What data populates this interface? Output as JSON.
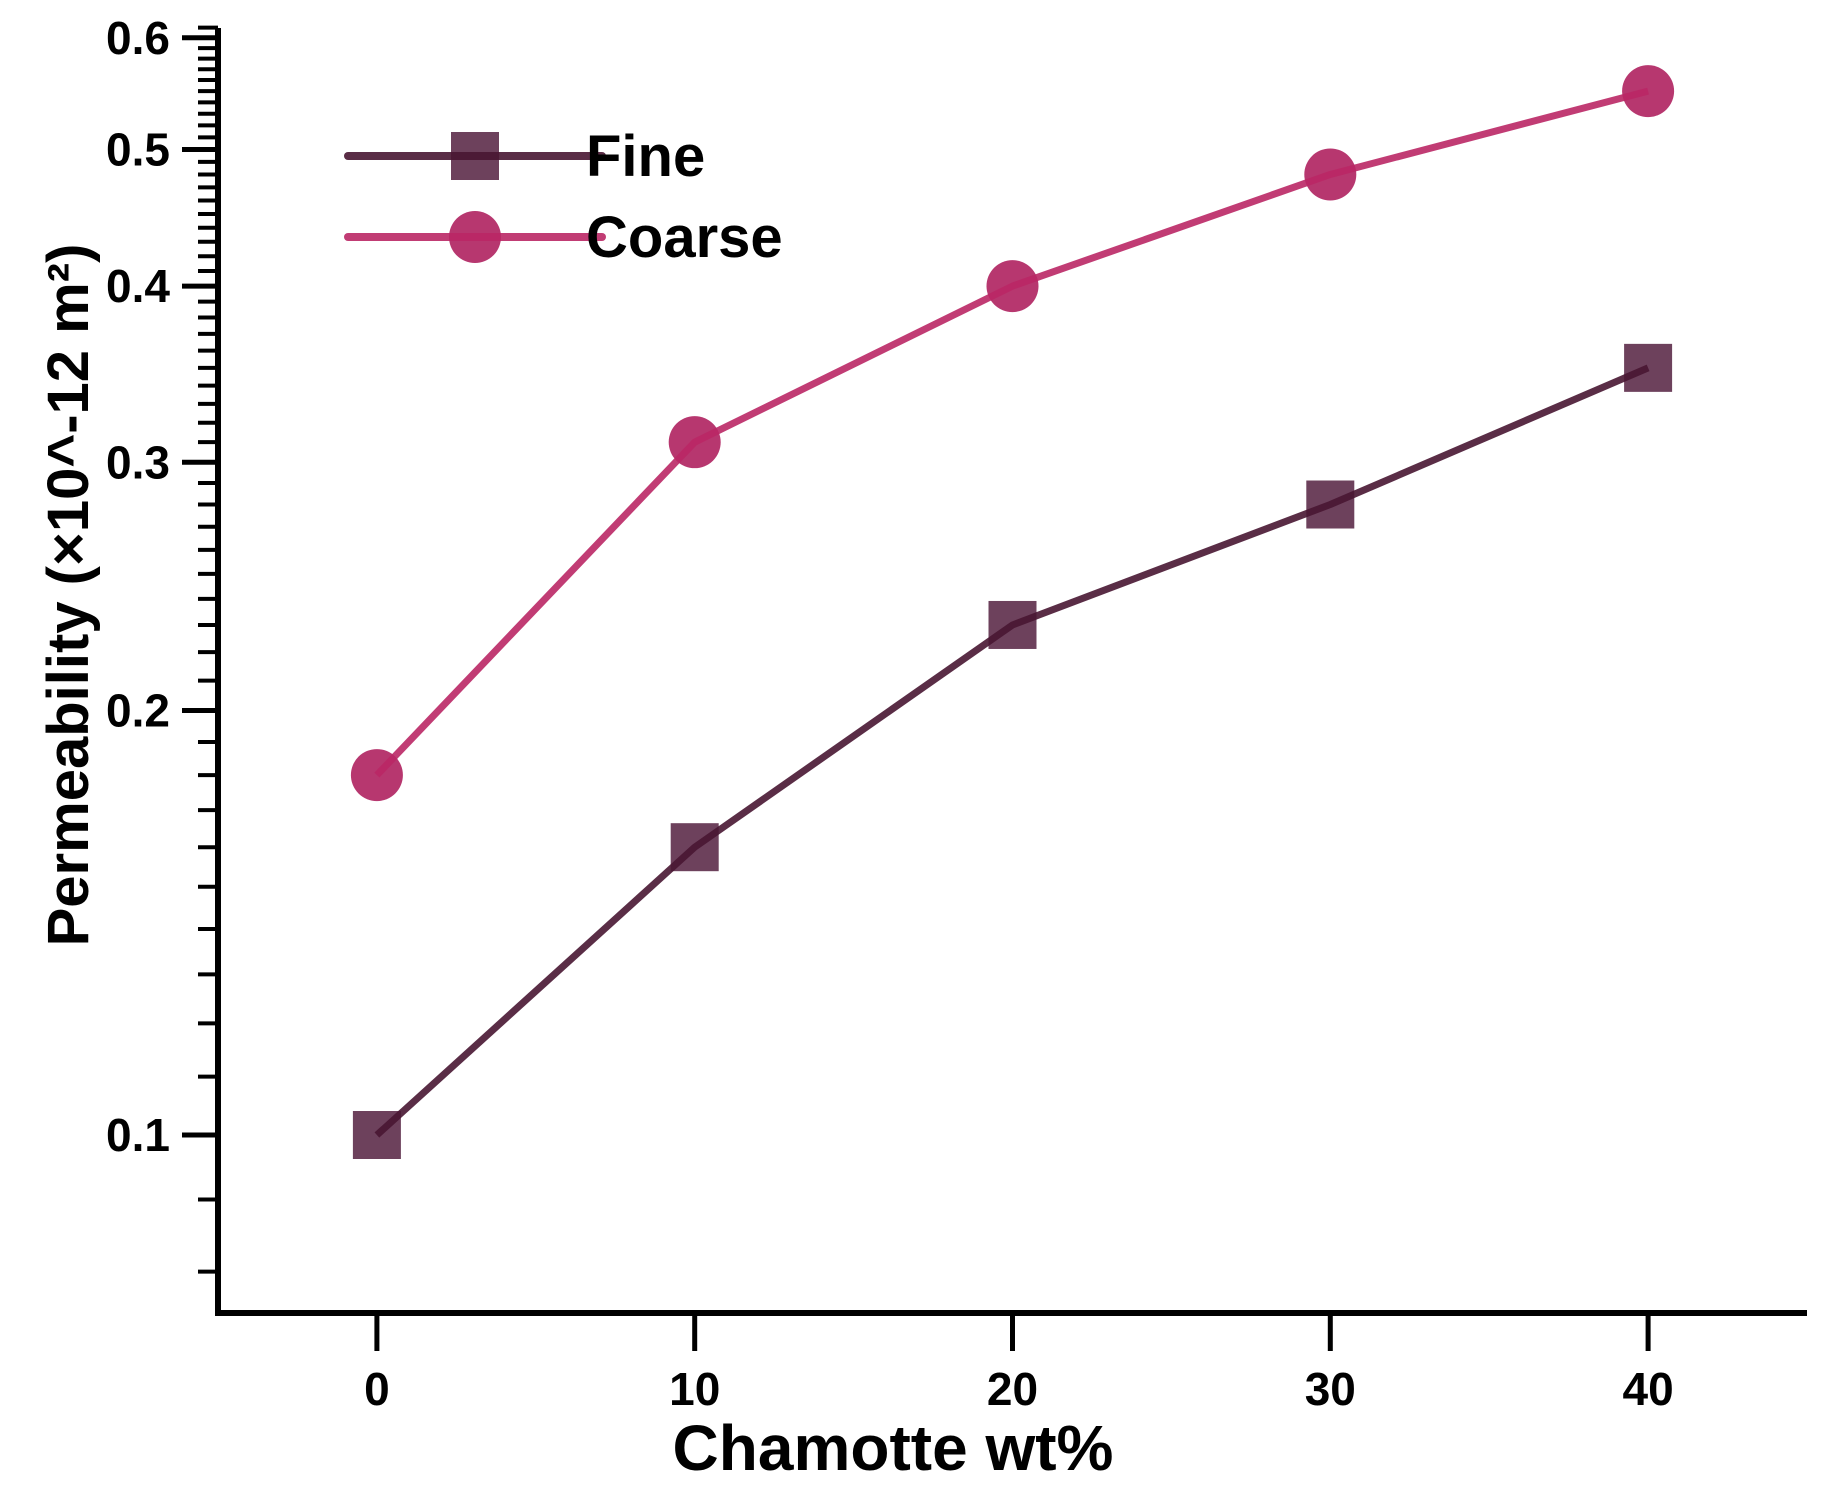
{
  "chart_data": {
    "type": "line",
    "title": "",
    "xlabel": "Chamotte wt%",
    "ylabel": "Permeability (×10^-12 m²)",
    "x": [
      0,
      10,
      20,
      30,
      40
    ],
    "x_tick_labels": [
      "0",
      "10",
      "20",
      "30",
      "40"
    ],
    "y_tick_values": [
      0.1,
      0.2,
      0.3,
      0.4,
      0.5,
      0.6
    ],
    "y_tick_labels": [
      "0.1",
      "0.2",
      "0.3",
      "0.4",
      "0.5",
      "0.6"
    ],
    "y_scale": "log",
    "y_minor_tick_step": 0.01,
    "ylim": [
      0.075,
      0.61
    ],
    "xlim": [
      -5,
      45
    ],
    "grid": false,
    "legend_position": "top-left",
    "legend": [
      "Fine",
      "Coarse"
    ],
    "series": [
      {
        "name": "Fine",
        "marker": "square",
        "values": [
          0.1,
          0.16,
          0.23,
          0.28,
          0.35
        ],
        "line_color": "rgba(72,22,50,0.9)",
        "marker_color": "rgba(93,44,74,0.9)"
      },
      {
        "name": "Coarse",
        "marker": "circle",
        "values": [
          0.18,
          0.31,
          0.4,
          0.48,
          0.55
        ],
        "line_color": "rgba(186,39,101,0.9)",
        "marker_color": "rgba(175,33,95,0.9)"
      }
    ],
    "axis_color": "#000000",
    "text_color": "#000000",
    "background": "#ffffff"
  }
}
